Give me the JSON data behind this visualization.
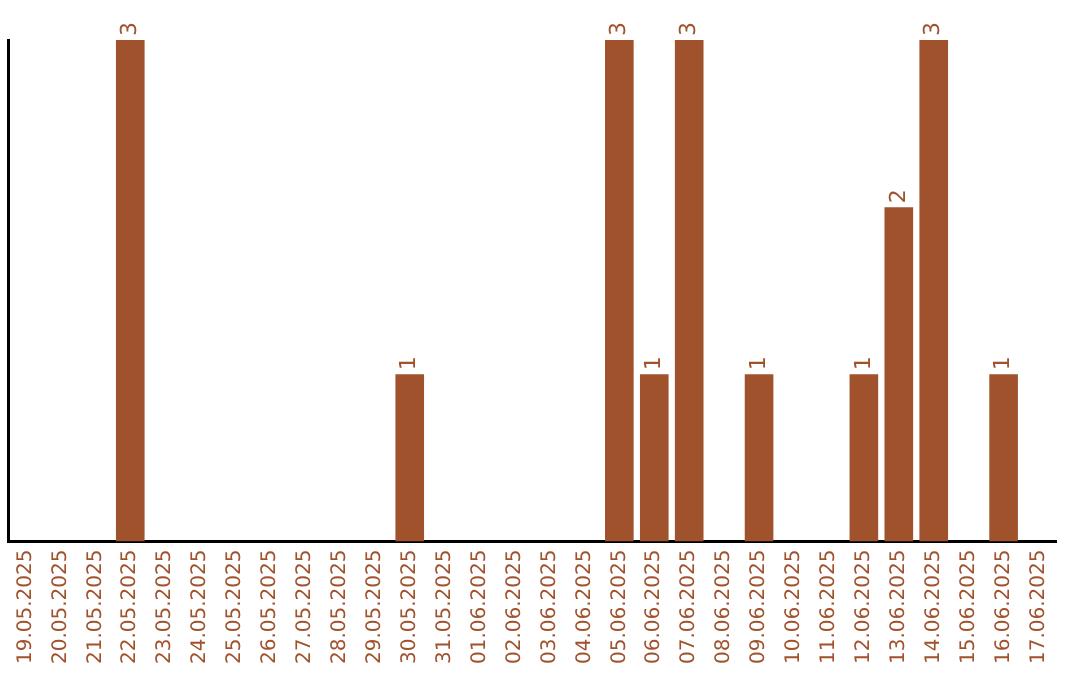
{
  "chart_data": {
    "type": "bar",
    "categories": [
      "19.05.2025",
      "20.05.2025",
      "21.05.2025",
      "22.05.2025",
      "23.05.2025",
      "24.05.2025",
      "25.05.2025",
      "26.05.2025",
      "27.05.2025",
      "28.05.2025",
      "29.05.2025",
      "30.05.2025",
      "31.05.2025",
      "01.06.2025",
      "02.06.2025",
      "03.06.2025",
      "04.06.2025",
      "05.06.2025",
      "06.06.2025",
      "07.06.2025",
      "08.06.2025",
      "09.06.2025",
      "10.06.2025",
      "11.06.2025",
      "12.06.2025",
      "13.06.2025",
      "14.06.2025",
      "15.06.2025",
      "16.06.2025",
      "17.06.2025"
    ],
    "values": [
      0,
      0,
      0,
      3,
      0,
      0,
      0,
      0,
      0,
      0,
      0,
      1,
      0,
      0,
      0,
      0,
      0,
      3,
      1,
      3,
      0,
      1,
      0,
      0,
      1,
      2,
      3,
      0,
      1,
      0
    ],
    "value_labels": [
      null,
      null,
      null,
      "3",
      null,
      null,
      null,
      null,
      null,
      null,
      null,
      "1",
      null,
      null,
      null,
      null,
      null,
      "3",
      "1",
      "3",
      null,
      "1",
      null,
      null,
      "1",
      "2",
      "3",
      null,
      "1",
      null
    ],
    "color": "#a0522d",
    "tick_labels": "x",
    "grid": false,
    "legend": false
  }
}
